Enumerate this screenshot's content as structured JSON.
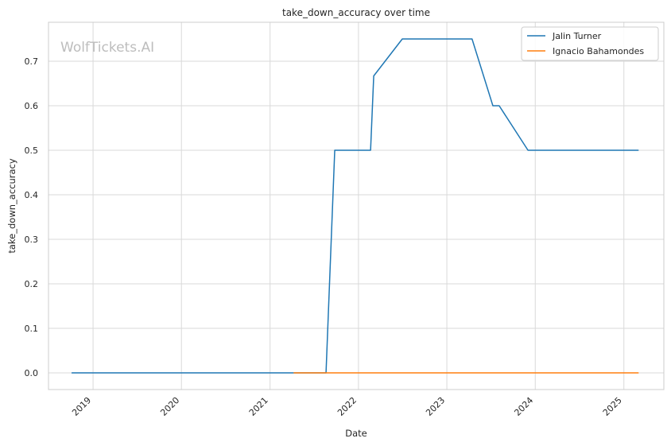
{
  "watermark": "WolfTickets.AI",
  "chart_data": {
    "type": "line",
    "title": "take_down_accuracy over time",
    "xlabel": "Date",
    "ylabel": "take_down_accuracy",
    "x_range": [
      "2018-07-01",
      "2025-06-15"
    ],
    "ylim": [
      -0.0375,
      0.7875
    ],
    "x_ticks": [
      "2019-01-01",
      "2020-01-01",
      "2021-01-01",
      "2022-01-01",
      "2023-01-01",
      "2024-01-01",
      "2025-01-01"
    ],
    "x_tick_labels": [
      "2019",
      "2020",
      "2021",
      "2022",
      "2023",
      "2024",
      "2025"
    ],
    "y_ticks": [
      0.0,
      0.1,
      0.2,
      0.3,
      0.4,
      0.5,
      0.6,
      0.7
    ],
    "y_tick_labels": [
      "0.0",
      "0.1",
      "0.2",
      "0.3",
      "0.4",
      "0.5",
      "0.6",
      "0.7"
    ],
    "grid": true,
    "legend_position": "top-right",
    "series": [
      {
        "name": "Jalin Turner",
        "color": "#1f77b4",
        "points": [
          [
            "2018-10-06",
            0.0
          ],
          [
            "2019-06-01",
            0.0
          ],
          [
            "2020-05-01",
            0.0
          ],
          [
            "2021-03-20",
            0.0
          ],
          [
            "2021-08-20",
            0.0
          ],
          [
            "2021-09-25",
            0.5
          ],
          [
            "2022-02-20",
            0.5
          ],
          [
            "2022-03-05",
            0.667
          ],
          [
            "2022-07-01",
            0.75
          ],
          [
            "2023-04-15",
            0.75
          ],
          [
            "2023-07-10",
            0.6
          ],
          [
            "2023-08-05",
            0.6
          ],
          [
            "2023-12-02",
            0.5
          ],
          [
            "2025-03-01",
            0.5
          ]
        ]
      },
      {
        "name": "Ignacio Bahamondes",
        "color": "#ff7f0e",
        "points": [
          [
            "2021-04-10",
            0.0
          ],
          [
            "2022-06-01",
            0.0
          ],
          [
            "2023-06-01",
            0.0
          ],
          [
            "2024-06-01",
            0.0
          ],
          [
            "2025-03-01",
            0.0
          ]
        ]
      }
    ]
  }
}
